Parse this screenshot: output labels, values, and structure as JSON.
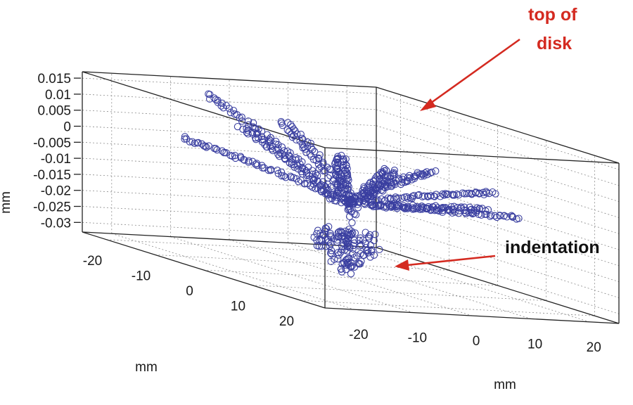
{
  "chart_data": {
    "type": "scatter",
    "projection": "3d",
    "title": "",
    "xlabel": "mm",
    "ylabel": "mm",
    "zlabel": "mm",
    "x_ticks": [
      -20,
      -10,
      0,
      10,
      20
    ],
    "y_ticks": [
      -20,
      -10,
      0,
      10,
      20
    ],
    "z_ticks": [
      0.015,
      0.01,
      0.005,
      0,
      -0.005,
      -0.01,
      -0.015,
      -0.02,
      -0.025,
      -0.03
    ],
    "z_tick_labels": [
      "0.015",
      "0.01",
      "0.005",
      "0",
      "-0.005",
      "-0.01",
      "-0.015",
      "-0.02",
      "-0.025",
      "-0.03"
    ],
    "xlim": [
      -25,
      25
    ],
    "ylim": [
      -25,
      25
    ],
    "zlim": [
      -0.033,
      0.017
    ],
    "grid": true,
    "marker": "open-circle",
    "marker_color": "#3a3fa0",
    "series": [
      {
        "description_values": "points along radial scan lines across a disk surface",
        "x": [],
        "y": [],
        "z": []
      }
    ],
    "arms": [
      {
        "angle_deg": -78,
        "z_outer": 0.0135,
        "z_inner": -0.009
      },
      {
        "angle_deg": -42,
        "z_outer": 0.011,
        "z_inner": -0.008
      },
      {
        "angle_deg": -10,
        "z_outer": 0.01,
        "z_inner": -0.008
      },
      {
        "angle_deg": 20,
        "z_outer": 0.004,
        "z_inner": -0.008
      },
      {
        "angle_deg": 52,
        "z_outer": -0.006,
        "z_inner": -0.009
      },
      {
        "angle_deg": 88,
        "z_outer": -0.009,
        "z_inner": -0.01
      },
      {
        "angle_deg": 128,
        "z_outer": -0.004,
        "z_inner": -0.009
      },
      {
        "angle_deg": 165,
        "z_outer": 0.006,
        "z_inner": -0.008
      },
      {
        "angle_deg": 200,
        "z_outer": 0.0135,
        "z_inner": -0.008
      },
      {
        "angle_deg": 238,
        "z_outer": 0.003,
        "z_inner": -0.008
      }
    ],
    "indentation": {
      "z_min": -0.033,
      "z_max": -0.018
    },
    "annotations": [
      {
        "text_lines": [
          "top of",
          "disk"
        ],
        "color": "#d42a20"
      },
      {
        "text_lines": [
          "indentation"
        ],
        "color": "#111111"
      }
    ]
  }
}
